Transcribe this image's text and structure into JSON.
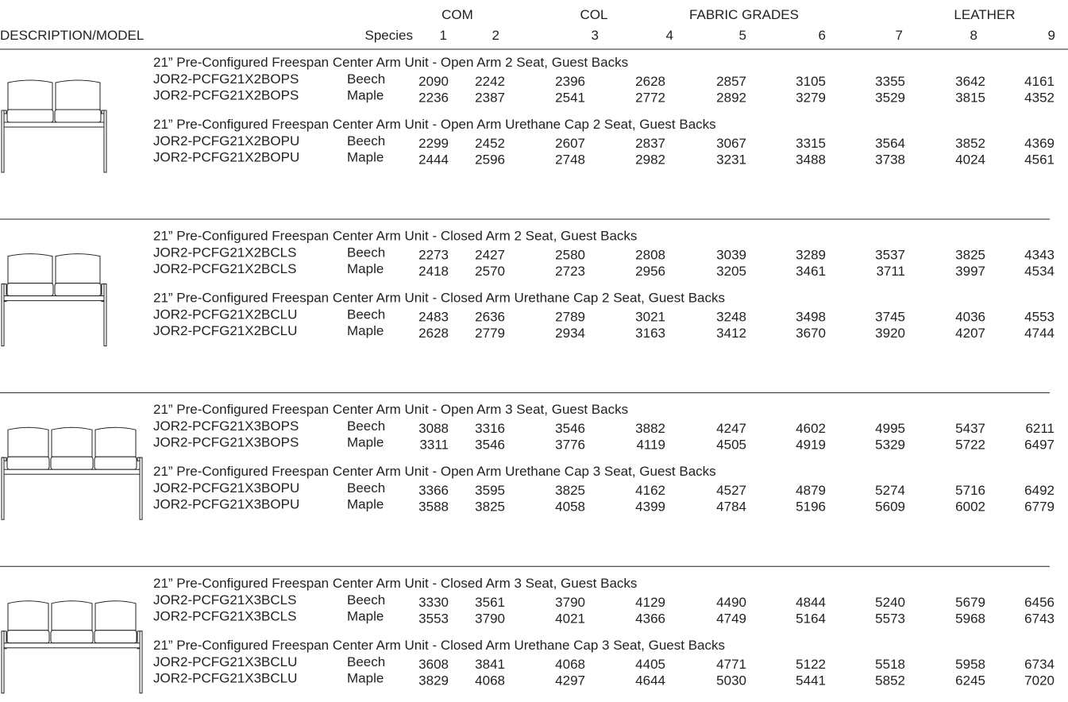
{
  "header": {
    "groups": [
      "COM",
      "COL",
      "FABRIC GRADES",
      "LEATHER"
    ],
    "description": "DESCRIPTION/MODEL",
    "species": "Species",
    "grades": [
      1,
      2,
      3,
      4,
      5,
      6,
      7,
      8,
      9
    ]
  },
  "sections": [
    {
      "subsections": [
        {
          "title": "21” Pre-Configured Freespan Center Arm Unit - Open Arm 2 Seat, Guest Backs",
          "rows": [
            {
              "model": "JOR2-PCFG21X2BOPS",
              "species": "Beech",
              "prices": [
                2090,
                2242,
                2396,
                2628,
                2857,
                3105,
                3355,
                3642,
                4161
              ]
            },
            {
              "model": "JOR2-PCFG21X2BOPS",
              "species": "Maple",
              "prices": [
                2236,
                2387,
                2541,
                2772,
                2892,
                3279,
                3529,
                3815,
                4352
              ]
            }
          ]
        },
        {
          "title": "21” Pre-Configured Freespan Center Arm Unit - Open Arm Urethane Cap 2 Seat, Guest Backs",
          "rows": [
            {
              "model": "JOR2-PCFG21X2BOPU",
              "species": "Beech",
              "prices": [
                2299,
                2452,
                2607,
                2837,
                3067,
                3315,
                3564,
                3852,
                4369
              ]
            },
            {
              "model": "JOR2-PCFG21X2BOPU",
              "species": "Maple",
              "prices": [
                2444,
                2596,
                2748,
                2982,
                3231,
                3488,
                3738,
                4024,
                4561
              ]
            }
          ]
        }
      ]
    },
    {
      "subsections": [
        {
          "title": "21” Pre-Configured Freespan Center Arm Unit - Closed Arm 2 Seat, Guest Backs",
          "rows": [
            {
              "model": "JOR2-PCFG21X2BCLS",
              "species": "Beech",
              "prices": [
                2273,
                2427,
                2580,
                2808,
                3039,
                3289,
                3537,
                3825,
                4343
              ]
            },
            {
              "model": "JOR2-PCFG21X2BCLS",
              "species": "Maple",
              "prices": [
                2418,
                2570,
                2723,
                2956,
                3205,
                3461,
                3711,
                3997,
                4534
              ]
            }
          ]
        },
        {
          "title": "21” Pre-Configured Freespan Center Arm Unit - Closed Arm Urethane Cap 2 Seat, Guest Backs",
          "rows": [
            {
              "model": "JOR2-PCFG21X2BCLU",
              "species": "Beech",
              "prices": [
                2483,
                2636,
                2789,
                3021,
                3248,
                3498,
                3745,
                4036,
                4553
              ]
            },
            {
              "model": "JOR2-PCFG21X2BCLU",
              "species": "Maple",
              "prices": [
                2628,
                2779,
                2934,
                3163,
                3412,
                3670,
                3920,
                4207,
                4744
              ]
            }
          ]
        }
      ]
    },
    {
      "subsections": [
        {
          "title": "21” Pre-Configured Freespan Center Arm Unit - Open Arm 3 Seat, Guest Backs",
          "rows": [
            {
              "model": "JOR2-PCFG21X3BOPS",
              "species": "Beech",
              "prices": [
                3088,
                3316,
                3546,
                3882,
                4247,
                4602,
                4995,
                5437,
                6211
              ]
            },
            {
              "model": "JOR2-PCFG21X3BOPS",
              "species": "Maple",
              "prices": [
                3311,
                3546,
                3776,
                4119,
                4505,
                4919,
                5329,
                5722,
                6497
              ]
            }
          ]
        },
        {
          "title": "21” Pre-Configured Freespan Center Arm Unit - Open Arm Urethane Cap 3 Seat, Guest Backs",
          "rows": [
            {
              "model": "JOR2-PCFG21X3BOPU",
              "species": "Beech",
              "prices": [
                3366,
                3595,
                3825,
                4162,
                4527,
                4879,
                5274,
                5716,
                6492
              ]
            },
            {
              "model": "JOR2-PCFG21X3BOPU",
              "species": "Maple",
              "prices": [
                3588,
                3825,
                4058,
                4399,
                4784,
                5196,
                5609,
                6002,
                6779
              ]
            }
          ]
        }
      ]
    },
    {
      "subsections": [
        {
          "title": "21” Pre-Configured Freespan Center Arm Unit - Closed Arm 3 Seat, Guest Backs",
          "rows": [
            {
              "model": "JOR2-PCFG21X3BCLS",
              "species": "Beech",
              "prices": [
                3330,
                3561,
                3790,
                4129,
                4490,
                4844,
                5240,
                5679,
                6456
              ]
            },
            {
              "model": "JOR2-PCFG21X3BCLS",
              "species": "Maple",
              "prices": [
                3553,
                3790,
                4021,
                4366,
                4749,
                5164,
                5573,
                5968,
                6743
              ]
            }
          ]
        },
        {
          "title": "21” Pre-Configured Freespan Center Arm Unit - Closed Arm Urethane Cap 3 Seat, Guest Backs",
          "rows": [
            {
              "model": "JOR2-PCFG21X3BCLU",
              "species": "Beech",
              "prices": [
                3608,
                3841,
                4068,
                4405,
                4771,
                5122,
                5518,
                5958,
                6734
              ]
            },
            {
              "model": "JOR2-PCFG21X3BCLU",
              "species": "Maple",
              "prices": [
                3829,
                4068,
                4297,
                4644,
                5030,
                5441,
                5852,
                6245,
                7020
              ]
            }
          ]
        }
      ]
    }
  ]
}
